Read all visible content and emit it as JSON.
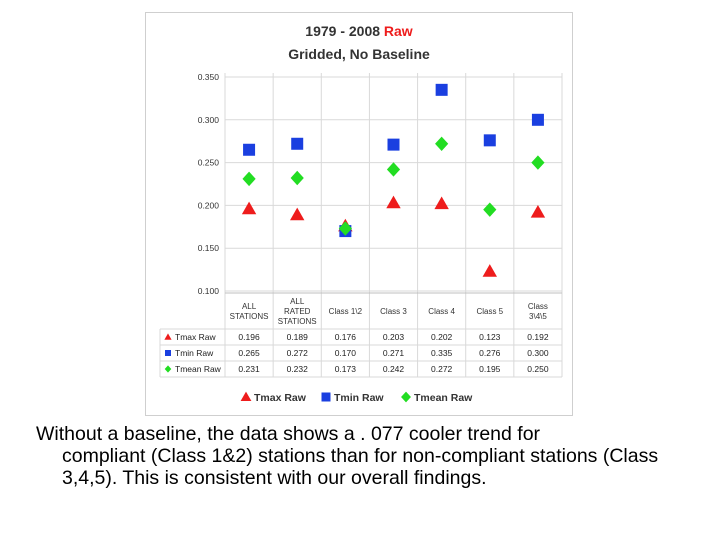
{
  "caption": {
    "line1": "Without a baseline, the data shows a . 077 cooler trend for",
    "rest": "compliant (Class 1&2) stations than for non-compliant stations (Class 3,4,5). This is consistent with our overall findings."
  },
  "chart_data": {
    "type": "scatter",
    "title_part1": "1979 - 2008 ",
    "title_highlight": "Raw",
    "subtitle": "Gridded, No Baseline",
    "ylim": [
      0.1,
      0.35
    ],
    "yticks": [
      "0.350",
      "0.300",
      "0.250",
      "0.200",
      "0.150",
      "0.100"
    ],
    "grid": true,
    "legend_position": "bottom",
    "categories": [
      [
        "ALL",
        "STATIONS"
      ],
      [
        "ALL",
        "RATED",
        "STATIONS"
      ],
      [
        "Class 1\\2"
      ],
      [
        "Class 3"
      ],
      [
        "Class 4"
      ],
      [
        "Class 5"
      ],
      [
        "Class",
        "3\\4\\5"
      ]
    ],
    "series": [
      {
        "name": "Tmax Raw",
        "color": "#ee1c1c",
        "marker": "triangle",
        "values": [
          0.196,
          0.189,
          0.176,
          0.203,
          0.202,
          0.123,
          0.192
        ],
        "labels": [
          "0.196",
          "0.189",
          "0.176",
          "0.203",
          "0.202",
          "0.123",
          "0.192"
        ]
      },
      {
        "name": "Tmin Raw",
        "color": "#1a3fe0",
        "marker": "square",
        "values": [
          0.265,
          0.272,
          0.17,
          0.271,
          0.335,
          0.276,
          0.3
        ],
        "labels": [
          "0.265",
          "0.272",
          "0.170",
          "0.271",
          "0.335",
          "0.276",
          "0.300"
        ]
      },
      {
        "name": "Tmean Raw",
        "color": "#22dd22",
        "marker": "diamond",
        "values": [
          0.231,
          0.232,
          0.173,
          0.242,
          0.272,
          0.195,
          0.25
        ],
        "labels": [
          "0.231",
          "0.232",
          "0.173",
          "0.242",
          "0.272",
          "0.195",
          "0.250"
        ]
      }
    ]
  }
}
